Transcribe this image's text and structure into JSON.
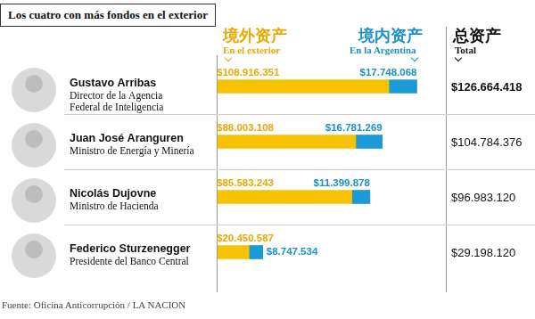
{
  "chart_data": {
    "type": "bar",
    "orientation": "horizontal",
    "stacked": true,
    "title": "Los cuatro con más fondos en el exterior",
    "categories": [
      "Gustavo Arribas",
      "Juan José Aranguren",
      "Nicolás Dujovne",
      "Federico Sturzenegger"
    ],
    "roles": [
      [
        "Director de la Agencia",
        "Federal de Inteligencia"
      ],
      [
        "Ministro de Energía y Minería"
      ],
      [
        "Ministro de Hacienda"
      ],
      [
        "Presidente del Banco Central"
      ]
    ],
    "series": [
      {
        "name": "En el exterior",
        "name_zh": "境外资产",
        "color": "#f7c200",
        "values": [
          108916351,
          88003108,
          85583243,
          20450587
        ],
        "value_labels": [
          "$108.916.351",
          "$88.003.108",
          "$85.583.243",
          "$20.450.587"
        ]
      },
      {
        "name": "En la Argentina",
        "name_zh": "境内资产",
        "color": "#1b9ad7",
        "values": [
          17748068,
          16781269,
          11399878,
          8747534
        ],
        "value_labels": [
          "$17.748.068",
          "$16.781.269",
          "$11.399.878",
          "$8.747.534"
        ]
      }
    ],
    "total_header": {
      "name_zh": "总资产",
      "name": "Total"
    },
    "totals": [
      126664418,
      104784376,
      96983120,
      29198120
    ],
    "total_labels": [
      "$126.664.418",
      "$104.784.376",
      "$96.983.120",
      "$29.198.120"
    ],
    "xlim": [
      0,
      145000000
    ],
    "xticks": [],
    "tick_labels": false,
    "grid": false,
    "data_labels": true,
    "source": "Fuente: Oficina Anticorrupción / LA NACION"
  }
}
